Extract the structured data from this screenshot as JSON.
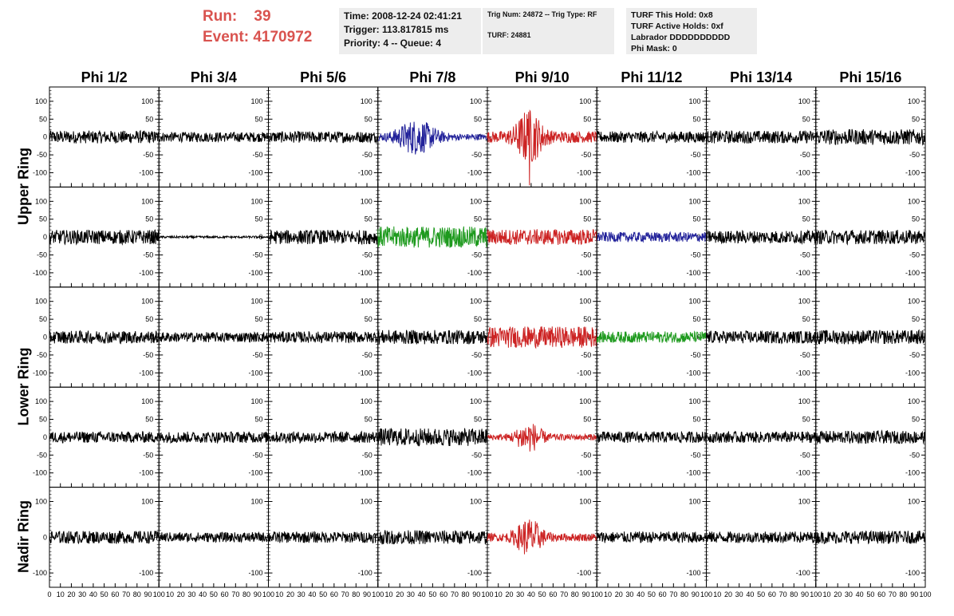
{
  "header": {
    "run_label": "Run:",
    "run_value": "39",
    "event_label": "Event:",
    "event_value": "4170972",
    "info1": [
      "Time: 2008-12-24 02:41:21",
      "Trigger: 113.817815 ms",
      "Priority: 4 -- Queue: 4"
    ],
    "info2": [
      "Trig Num: 24872 -- Trig Type: RF",
      "",
      "TURF: 24881"
    ],
    "info3": [
      "TURF This Hold: 0x8",
      "TURF Active Holds: 0xf",
      "Labrador DDDDDDDDDD",
      "Phi Mask: 0"
    ]
  },
  "chart_data": {
    "type": "line",
    "columns": [
      "Phi 1/2",
      "Phi 3/4",
      "Phi 5/6",
      "Phi 7/8",
      "Phi 9/10",
      "Phi 11/12",
      "Phi 13/14",
      "Phi 15/16"
    ],
    "rows": [
      "Upper Ring",
      "Upper Ring",
      "Lower Ring",
      "Lower Ring",
      "Nadir Ring"
    ],
    "ring_labels": [
      "Upper Ring",
      "Lower Ring",
      "Nadir Ring"
    ],
    "x_range": [
      0,
      100
    ],
    "y_range": [
      -140,
      140
    ],
    "y_ticks": [
      100,
      50,
      0,
      -50,
      -100
    ],
    "y_ticks_nadir": [
      100,
      0,
      -100
    ],
    "x_ticks": [
      0,
      10,
      20,
      30,
      40,
      50,
      60,
      70,
      80,
      90,
      100
    ],
    "colors": {
      "default": "#000000",
      "red": "#cc2222",
      "blue": "#22229a",
      "green": "#1e9a1e"
    },
    "panels": [
      [
        "default",
        "default",
        "default",
        "blue",
        "red",
        "default",
        "default",
        "default"
      ],
      [
        "default",
        "default",
        "default",
        "green",
        "red",
        "blue",
        "default",
        "default"
      ],
      [
        "default",
        "default",
        "default",
        "default",
        "red",
        "green",
        "default",
        "default"
      ],
      [
        "default",
        "default",
        "default",
        "default",
        "red",
        "default",
        "default",
        "default"
      ],
      [
        "default",
        "default",
        "default",
        "default",
        "red",
        "default",
        "default",
        "default"
      ]
    ],
    "amplitude": [
      [
        18,
        14,
        16,
        30,
        40,
        16,
        18,
        22
      ],
      [
        20,
        3,
        20,
        30,
        22,
        14,
        18,
        20
      ],
      [
        18,
        14,
        16,
        20,
        30,
        16,
        18,
        20
      ],
      [
        16,
        16,
        16,
        25,
        22,
        16,
        16,
        18
      ],
      [
        18,
        14,
        16,
        20,
        28,
        16,
        16,
        18
      ]
    ]
  }
}
